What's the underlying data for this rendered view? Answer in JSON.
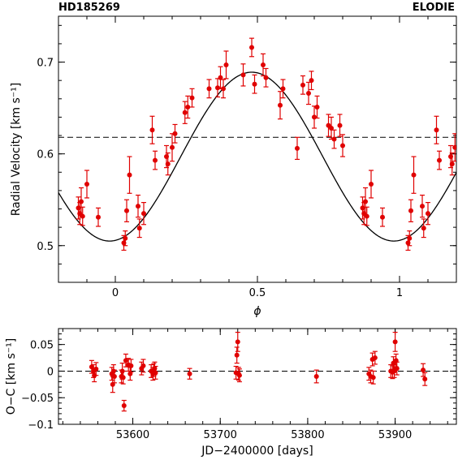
{
  "header": {
    "left": "HD185269",
    "right": "ELODIE"
  },
  "chart_data": [
    {
      "type": "scatter",
      "name": "phased-rv",
      "xlabel": "ϕ",
      "ylabel": "Radial Velocity [km s⁻¹]",
      "xlim": [
        -0.2,
        1.2
      ],
      "ylim": [
        0.46,
        0.75
      ],
      "xticks": [
        0,
        0.5,
        1
      ],
      "xtick_labels": [
        "0",
        "0.5",
        "1"
      ],
      "yticks": [
        0.5,
        0.6,
        0.7
      ],
      "ytick_labels": [
        "0.5",
        "0.6",
        "0.7"
      ],
      "reference_line": {
        "y": 0.618,
        "style": "dashed"
      },
      "model_curve": {
        "type": "sine",
        "gamma": 0.597,
        "amplitude": 0.092,
        "period": 1.0,
        "phase_of_max": 0.48
      },
      "points": [
        {
          "x": -0.13,
          "y": 0.541,
          "err": 0.012
        },
        {
          "x": -0.125,
          "y": 0.535,
          "err": 0.012
        },
        {
          "x": -0.12,
          "y": 0.548,
          "err": 0.015
        },
        {
          "x": -0.115,
          "y": 0.532,
          "err": 0.01
        },
        {
          "x": -0.1,
          "y": 0.567,
          "err": 0.015
        },
        {
          "x": -0.06,
          "y": 0.531,
          "err": 0.01
        },
        {
          "x": 0.03,
          "y": 0.503,
          "err": 0.008
        },
        {
          "x": 0.035,
          "y": 0.508,
          "err": 0.008
        },
        {
          "x": 0.04,
          "y": 0.538,
          "err": 0.012
        },
        {
          "x": 0.05,
          "y": 0.577,
          "err": 0.02
        },
        {
          "x": 0.08,
          "y": 0.543,
          "err": 0.012
        },
        {
          "x": 0.085,
          "y": 0.519,
          "err": 0.01
        },
        {
          "x": 0.1,
          "y": 0.535,
          "err": 0.012
        },
        {
          "x": 0.13,
          "y": 0.626,
          "err": 0.015
        },
        {
          "x": 0.14,
          "y": 0.593,
          "err": 0.01
        },
        {
          "x": 0.18,
          "y": 0.597,
          "err": 0.012
        },
        {
          "x": 0.185,
          "y": 0.589,
          "err": 0.012
        },
        {
          "x": 0.2,
          "y": 0.607,
          "err": 0.015
        },
        {
          "x": 0.21,
          "y": 0.622,
          "err": 0.01
        },
        {
          "x": 0.245,
          "y": 0.645,
          "err": 0.012
        },
        {
          "x": 0.255,
          "y": 0.651,
          "err": 0.012
        },
        {
          "x": 0.27,
          "y": 0.661,
          "err": 0.01
        },
        {
          "x": 0.33,
          "y": 0.671,
          "err": 0.01
        },
        {
          "x": 0.36,
          "y": 0.672,
          "err": 0.01
        },
        {
          "x": 0.37,
          "y": 0.683,
          "err": 0.012
        },
        {
          "x": 0.38,
          "y": 0.671,
          "err": 0.01
        },
        {
          "x": 0.39,
          "y": 0.697,
          "err": 0.015
        },
        {
          "x": 0.45,
          "y": 0.686,
          "err": 0.012
        },
        {
          "x": 0.48,
          "y": 0.716,
          "err": 0.01
        },
        {
          "x": 0.49,
          "y": 0.676,
          "err": 0.01
        },
        {
          "x": 0.52,
          "y": 0.697,
          "err": 0.012
        },
        {
          "x": 0.53,
          "y": 0.683,
          "err": 0.01
        },
        {
          "x": 0.58,
          "y": 0.653,
          "err": 0.015
        },
        {
          "x": 0.59,
          "y": 0.671,
          "err": 0.01
        },
        {
          "x": 0.64,
          "y": 0.606,
          "err": 0.012
        },
        {
          "x": 0.66,
          "y": 0.675,
          "err": 0.01
        },
        {
          "x": 0.68,
          "y": 0.666,
          "err": 0.012
        },
        {
          "x": 0.69,
          "y": 0.68,
          "err": 0.01
        },
        {
          "x": 0.7,
          "y": 0.64,
          "err": 0.012
        },
        {
          "x": 0.71,
          "y": 0.651,
          "err": 0.012
        },
        {
          "x": 0.75,
          "y": 0.631,
          "err": 0.012
        },
        {
          "x": 0.76,
          "y": 0.628,
          "err": 0.012
        },
        {
          "x": 0.77,
          "y": 0.616,
          "err": 0.01
        },
        {
          "x": 0.79,
          "y": 0.631,
          "err": 0.012
        },
        {
          "x": 0.8,
          "y": 0.609,
          "err": 0.012
        },
        {
          "x": 0.87,
          "y": 0.541,
          "err": 0.012
        },
        {
          "x": 0.875,
          "y": 0.535,
          "err": 0.012
        },
        {
          "x": 0.88,
          "y": 0.548,
          "err": 0.015
        },
        {
          "x": 0.885,
          "y": 0.532,
          "err": 0.01
        },
        {
          "x": 0.9,
          "y": 0.567,
          "err": 0.015
        },
        {
          "x": 0.94,
          "y": 0.531,
          "err": 0.01
        },
        {
          "x": 1.03,
          "y": 0.503,
          "err": 0.008
        },
        {
          "x": 1.035,
          "y": 0.508,
          "err": 0.008
        },
        {
          "x": 1.04,
          "y": 0.538,
          "err": 0.012
        },
        {
          "x": 1.05,
          "y": 0.577,
          "err": 0.02
        },
        {
          "x": 1.08,
          "y": 0.543,
          "err": 0.012
        },
        {
          "x": 1.085,
          "y": 0.519,
          "err": 0.01
        },
        {
          "x": 1.1,
          "y": 0.535,
          "err": 0.012
        },
        {
          "x": 1.13,
          "y": 0.626,
          "err": 0.015
        },
        {
          "x": 1.14,
          "y": 0.593,
          "err": 0.01
        },
        {
          "x": 1.18,
          "y": 0.597,
          "err": 0.012
        },
        {
          "x": 1.185,
          "y": 0.589,
          "err": 0.012
        },
        {
          "x": 1.195,
          "y": 0.607,
          "err": 0.015
        }
      ]
    },
    {
      "type": "scatter",
      "name": "residuals",
      "xlabel": "JD−2400000 [days]",
      "ylabel": "O−C [km s⁻¹]",
      "xlim": [
        53515,
        53970
      ],
      "ylim": [
        -0.1,
        0.08
      ],
      "xticks": [
        53600,
        53700,
        53800,
        53900
      ],
      "xtick_labels": [
        "53600",
        "53700",
        "53800",
        "53900"
      ],
      "yticks": [
        -0.1,
        -0.05,
        0,
        0.05
      ],
      "ytick_labels": [
        "−0.1",
        "−0.05",
        "0",
        "0.05"
      ],
      "reference_line": {
        "y": 0,
        "style": "dashed"
      },
      "points": [
        {
          "x": 53553,
          "y": 0.008,
          "err": 0.012
        },
        {
          "x": 53555,
          "y": 0.0,
          "err": 0.012
        },
        {
          "x": 53556,
          "y": -0.008,
          "err": 0.012
        },
        {
          "x": 53558,
          "y": 0.004,
          "err": 0.012
        },
        {
          "x": 53576,
          "y": -0.005,
          "err": 0.012
        },
        {
          "x": 53577,
          "y": -0.025,
          "err": 0.015
        },
        {
          "x": 53578,
          "y": 0.0,
          "err": 0.012
        },
        {
          "x": 53579,
          "y": -0.01,
          "err": 0.012
        },
        {
          "x": 53587,
          "y": -0.01,
          "err": 0.012
        },
        {
          "x": 53588,
          "y": 0.0,
          "err": 0.015
        },
        {
          "x": 53589,
          "y": -0.012,
          "err": 0.012
        },
        {
          "x": 53590,
          "y": -0.065,
          "err": 0.01
        },
        {
          "x": 53592,
          "y": 0.02,
          "err": 0.012
        },
        {
          "x": 53595,
          "y": 0.012,
          "err": 0.012
        },
        {
          "x": 53597,
          "y": -0.005,
          "err": 0.012
        },
        {
          "x": 53598,
          "y": 0.01,
          "err": 0.012
        },
        {
          "x": 53610,
          "y": 0.005,
          "err": 0.012
        },
        {
          "x": 53612,
          "y": 0.01,
          "err": 0.012
        },
        {
          "x": 53621,
          "y": 0.0,
          "err": 0.012
        },
        {
          "x": 53623,
          "y": -0.005,
          "err": 0.012
        },
        {
          "x": 53624,
          "y": 0.002,
          "err": 0.012
        },
        {
          "x": 53625,
          "y": 0.005,
          "err": 0.012
        },
        {
          "x": 53626,
          "y": -0.003,
          "err": 0.012
        },
        {
          "x": 53665,
          "y": -0.005,
          "err": 0.01
        },
        {
          "x": 53718,
          "y": -0.003,
          "err": 0.012
        },
        {
          "x": 53719,
          "y": 0.03,
          "err": 0.015
        },
        {
          "x": 53720,
          "y": 0.055,
          "err": 0.018
        },
        {
          "x": 53721,
          "y": -0.005,
          "err": 0.012
        },
        {
          "x": 53722,
          "y": -0.008,
          "err": 0.012
        },
        {
          "x": 53810,
          "y": -0.01,
          "err": 0.012
        },
        {
          "x": 53870,
          "y": -0.005,
          "err": 0.012
        },
        {
          "x": 53872,
          "y": -0.01,
          "err": 0.012
        },
        {
          "x": 53874,
          "y": 0.022,
          "err": 0.012
        },
        {
          "x": 53875,
          "y": -0.012,
          "err": 0.012
        },
        {
          "x": 53877,
          "y": 0.025,
          "err": 0.012
        },
        {
          "x": 53895,
          "y": 0.0,
          "err": 0.012
        },
        {
          "x": 53897,
          "y": -0.002,
          "err": 0.012
        },
        {
          "x": 53898,
          "y": 0.015,
          "err": 0.012
        },
        {
          "x": 53899,
          "y": 0.0,
          "err": 0.012
        },
        {
          "x": 53900,
          "y": 0.055,
          "err": 0.018
        },
        {
          "x": 53901,
          "y": 0.02,
          "err": 0.012
        },
        {
          "x": 53902,
          "y": 0.005,
          "err": 0.012
        },
        {
          "x": 53932,
          "y": 0.002,
          "err": 0.012
        },
        {
          "x": 53934,
          "y": -0.015,
          "err": 0.012
        }
      ]
    }
  ],
  "colors": {
    "points": "#e00000",
    "axes": "#000000"
  }
}
